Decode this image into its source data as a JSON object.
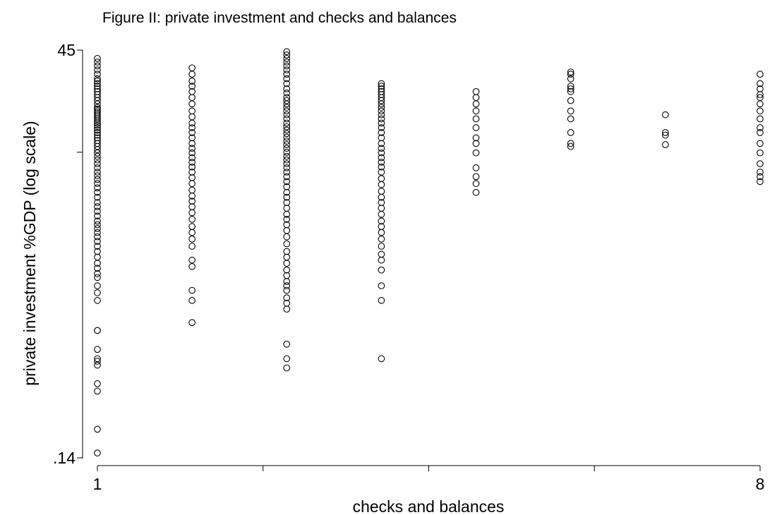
{
  "chart_data": {
    "type": "scatter",
    "title": "Figure II: private investment and checks and balances",
    "xlabel": "checks and balances",
    "ylabel": "private investment %GDP (log scale)",
    "xlim": [
      1,
      8
    ],
    "ylim": [
      0.14,
      45
    ],
    "y_scale": "log",
    "grid": false,
    "legend": "none",
    "colors": {
      "marker": "#000000",
      "background": "#ffffff"
    },
    "x_ticks": [
      {
        "value": 1,
        "label": "1"
      },
      {
        "value": 2.75,
        "label": ""
      },
      {
        "value": 4.5,
        "label": ""
      },
      {
        "value": 6.25,
        "label": ""
      },
      {
        "value": 8,
        "label": "8"
      }
    ],
    "y_ticks": [
      {
        "value": 45,
        "label": "45"
      },
      {
        "value": 10.6,
        "label": ""
      },
      {
        "value": 0.14,
        "label": ".14"
      }
    ],
    "series": [
      {
        "x": 1,
        "y": [
          40,
          38,
          36,
          34,
          32,
          30,
          29,
          28,
          27,
          26,
          25,
          24,
          23,
          22,
          21,
          20,
          19.5,
          19,
          18.5,
          18,
          17.5,
          17,
          16.5,
          16,
          15.5,
          15,
          14.5,
          14,
          13.5,
          13,
          12.5,
          12,
          11.5,
          11,
          10.5,
          10,
          9.5,
          9,
          8.5,
          8,
          7.6,
          7.2,
          6.8,
          6.4,
          6,
          5.6,
          5.2,
          4.9,
          4.6,
          4.3,
          4,
          3.8,
          3.6,
          3.4,
          3.2,
          3,
          2.8,
          2.6,
          2.4,
          2.2,
          2.05,
          1.9,
          1.8,
          1.6,
          1.45,
          1.3,
          0.85,
          0.85,
          0.65,
          0.57,
          0.55,
          0.52,
          0.4,
          0.36,
          0.21,
          0.15
        ]
      },
      {
        "x": 2,
        "y": [
          35,
          32,
          29,
          27,
          25,
          23,
          21,
          19,
          17.5,
          16,
          15,
          14,
          13,
          12,
          11.2,
          10.5,
          9.8,
          9.2,
          8.6,
          8,
          7.4,
          6.8,
          6.2,
          5.7,
          5.3,
          4.9,
          4.5,
          4.1,
          3.7,
          3.4,
          3.1,
          2.8,
          2.3,
          2.1,
          1.5,
          1.3,
          0.95
        ]
      },
      {
        "x": 3,
        "y": [
          44,
          42,
          40,
          38,
          36,
          34,
          32,
          30,
          28,
          26,
          24.5,
          23,
          22,
          21,
          20,
          19,
          18,
          17,
          16,
          15.2,
          14.5,
          13.8,
          13.1,
          12.4,
          11.8,
          11.2,
          10.6,
          10,
          9.5,
          9,
          8.5,
          8,
          7.5,
          7,
          6.5,
          6,
          5.6,
          5.2,
          4.8,
          4.4,
          4.1,
          3.8,
          3.5,
          3.2,
          2.9,
          2.6,
          2.4,
          2.2,
          2,
          1.85,
          1.7,
          1.6,
          1.5,
          1.35,
          1.25,
          1.15,
          0.7,
          0.57,
          0.5
        ]
      },
      {
        "x": 4,
        "y": [
          28,
          27,
          26,
          25,
          24,
          23,
          22,
          21,
          20,
          19,
          18,
          17,
          16,
          15,
          14,
          13,
          12,
          11.2,
          10.5,
          9.8,
          9.2,
          8.6,
          8,
          7.3,
          6.7,
          6.1,
          5.6,
          5.2,
          4.8,
          4.4,
          4,
          3.7,
          3.4,
          3.1,
          2.8,
          2.5,
          2.3,
          2,
          1.6,
          1.3,
          0.57
        ]
      },
      {
        "x": 5,
        "y": [
          25,
          23,
          21,
          19,
          17,
          15,
          13,
          12,
          10.5,
          8.5,
          7.5,
          6.8,
          6
        ]
      },
      {
        "x": 6,
        "y": [
          33,
          32,
          30,
          27,
          26,
          25,
          22,
          19,
          17,
          14,
          12,
          11.5
        ]
      },
      {
        "x": 7,
        "y": [
          18,
          14,
          13.5,
          11.8
        ]
      },
      {
        "x": 8,
        "y": [
          32,
          28,
          26,
          24,
          23,
          21,
          19,
          17,
          15,
          14,
          12,
          10.5,
          9,
          8,
          7.5,
          7
        ]
      }
    ]
  }
}
